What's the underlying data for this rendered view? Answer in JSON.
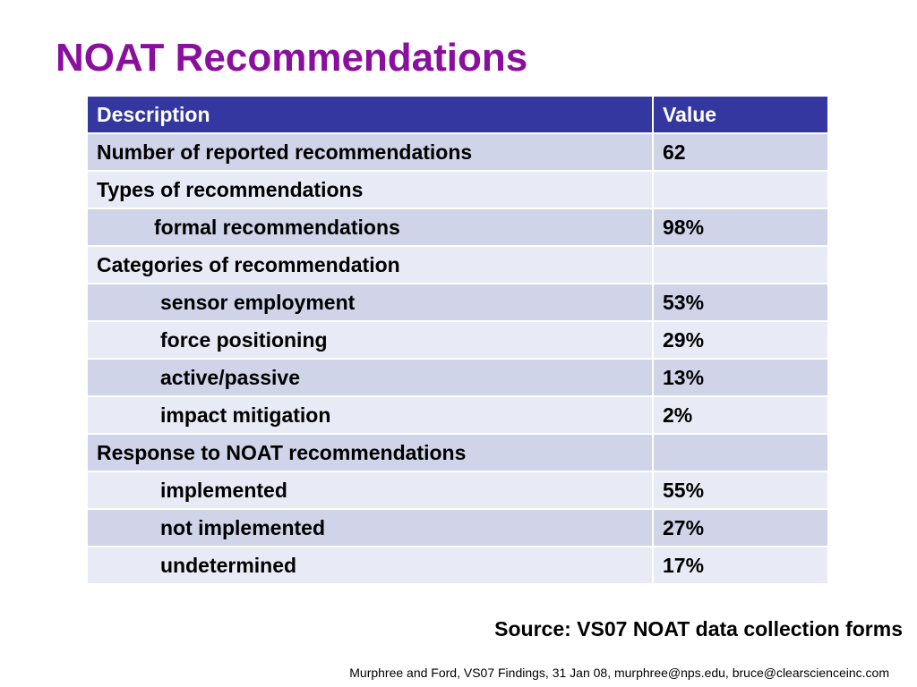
{
  "title": "NOAT Recommendations",
  "table": {
    "headers": [
      "Description",
      "Value"
    ],
    "rows": [
      {
        "description": "Number of reported recommendations",
        "value": "62"
      },
      {
        "description": "Types of recommendations",
        "value": ""
      },
      {
        "description": "formal recommendations",
        "value": "98%"
      },
      {
        "description": "Categories of recommendation",
        "value": ""
      },
      {
        "description": "sensor employment",
        "value": "53%"
      },
      {
        "description": "force positioning",
        "value": "29%"
      },
      {
        "description": "active/passive",
        "value": "13%"
      },
      {
        "description": "impact mitigation",
        "value": "2%"
      },
      {
        "description": "Response to NOAT recommendations",
        "value": ""
      },
      {
        "description": "implemented",
        "value": "55%"
      },
      {
        "description": "not implemented",
        "value": "27%"
      },
      {
        "description": "undetermined",
        "value": "17%"
      }
    ]
  },
  "source": "Source:  VS07 NOAT data collection forms",
  "footer": "Murphree and Ford, VS07 Findings, 31 Jan 08, murphree@nps.edu, bruce@clearscienceinc.com",
  "colors": {
    "title": "#8b0f9e",
    "header_bg": "#3437a0",
    "row_dark": "#cfd4e9",
    "row_light": "#e8eaf5"
  }
}
